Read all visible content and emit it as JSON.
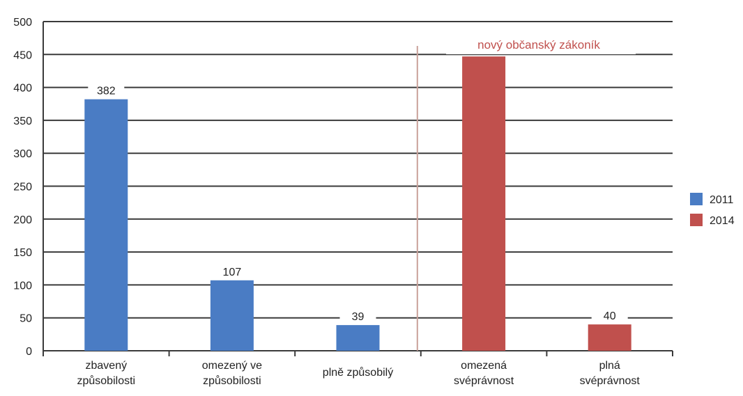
{
  "chart_data": {
    "type": "bar",
    "categories": [
      "zbavený|způsobilosti",
      "omezený ve|způsobilosti",
      "plně způsobilý",
      "omezená|svéprávnost",
      "plná|svéprávnost"
    ],
    "series": [
      {
        "name": "2011",
        "color": "#4a7cc4",
        "values": [
          382,
          107,
          39,
          null,
          null
        ]
      },
      {
        "name": "2014",
        "color": "#c0504d",
        "values": [
          null,
          null,
          null,
          447,
          40
        ]
      }
    ],
    "data_labels": [
      "382",
      "107",
      "39",
      "",
      "40"
    ],
    "ylim": [
      0,
      500
    ],
    "yticks": [
      0,
      50,
      100,
      150,
      200,
      250,
      300,
      350,
      400,
      450,
      500
    ],
    "grid": true,
    "legend": "right",
    "annotation": {
      "text": "nový občanský zákoník",
      "divider_between": [
        2,
        3
      ]
    }
  }
}
